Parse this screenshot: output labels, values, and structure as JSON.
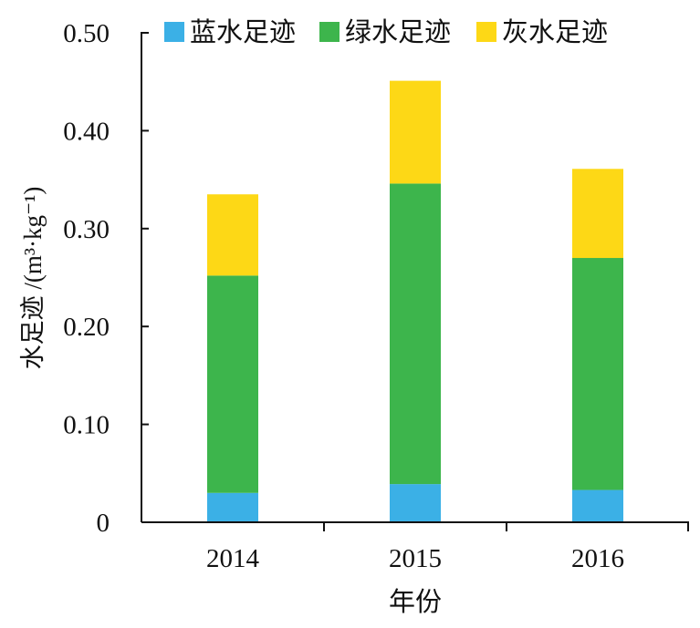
{
  "chart_data": {
    "type": "bar",
    "stacked": true,
    "categories": [
      "2014",
      "2015",
      "2016"
    ],
    "series": [
      {
        "name": "蓝水足迹",
        "color": "#3BB0E6",
        "values": [
          0.03,
          0.039,
          0.033
        ]
      },
      {
        "name": "绿水足迹",
        "color": "#3DB54C",
        "values": [
          0.222,
          0.307,
          0.237
        ]
      },
      {
        "name": "灰水足迹",
        "color": "#FDD816",
        "values": [
          0.083,
          0.105,
          0.091
        ]
      }
    ],
    "xlabel": "年份",
    "ylabel": "水足迹 /(m³·kg⁻¹)",
    "ylim": [
      0,
      0.5
    ],
    "yticks": [
      0,
      0.1,
      0.2,
      0.3,
      0.4,
      0.5
    ],
    "ytick_labels": [
      "0",
      "0.10",
      "0.20",
      "0.30",
      "0.40",
      "0.50"
    ],
    "grid": false,
    "legend_position": "top"
  }
}
